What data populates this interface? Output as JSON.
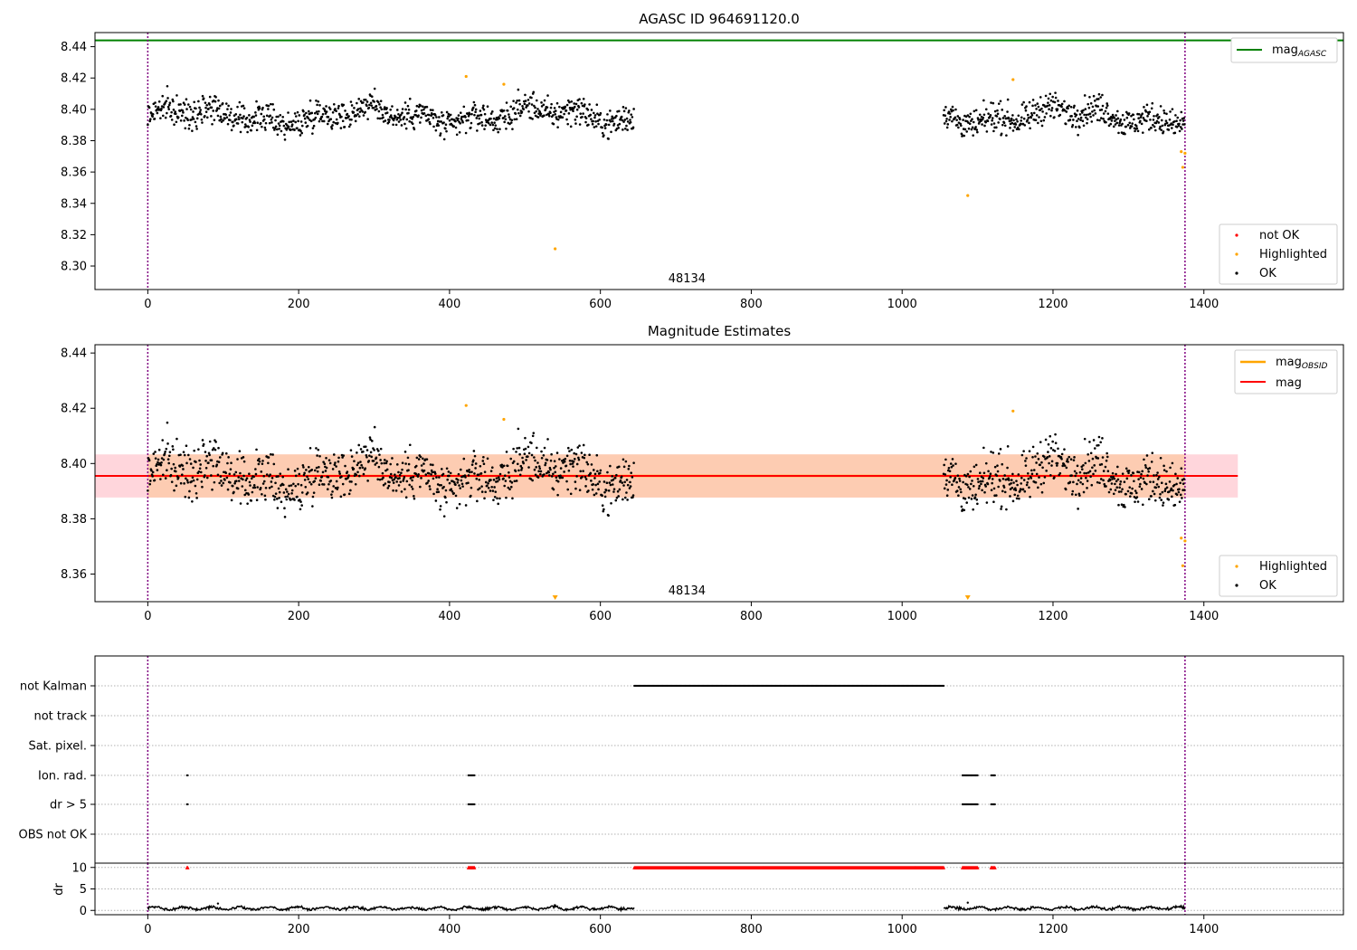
{
  "chart_data": [
    {
      "type": "scatter",
      "title": "AGASC ID 964691120.0",
      "xlim": [
        -70,
        1585
      ],
      "ylim": [
        8.285,
        8.449
      ],
      "xticks": [
        0,
        200,
        400,
        600,
        800,
        1000,
        1200,
        1400
      ],
      "yticks": [
        8.3,
        8.32,
        8.34,
        8.36,
        8.38,
        8.4,
        8.42,
        8.44
      ],
      "xtick_labels": [
        "0",
        "200",
        "400",
        "600",
        "800",
        "1000",
        "1200",
        "1400"
      ],
      "ytick_labels": [
        "8.30",
        "8.32",
        "8.34",
        "8.36",
        "8.38",
        "8.40",
        "8.42",
        "8.44"
      ],
      "obsid_label": {
        "text": "48134",
        "x": 690
      },
      "vlines": [
        0,
        1375
      ],
      "hline": {
        "name": "mag_AGASC",
        "value": 8.444,
        "color": "#008000"
      },
      "ok_segments": [
        [
          0,
          645
        ],
        [
          1055,
          1375
        ]
      ],
      "ok_mean": 8.396,
      "ok_spread": 0.0045,
      "ok_count": 1380,
      "highlighted_points": [
        [
          422,
          8.421
        ],
        [
          472,
          8.416
        ],
        [
          540,
          8.311
        ],
        [
          1087,
          8.345
        ],
        [
          1147,
          8.419
        ],
        [
          1370,
          8.373
        ],
        [
          1372,
          8.363
        ],
        [
          1375,
          8.372
        ]
      ],
      "legend": {
        "placement": "lower-right",
        "entries": [
          {
            "label": "not OK",
            "color": "#ff0000"
          },
          {
            "label": "Highlighted",
            "color": "#ffa500"
          },
          {
            "label": "OK",
            "color": "#000000"
          }
        ]
      },
      "line_legend": {
        "placement": "upper-right",
        "entries": [
          {
            "label": "mag",
            "sub": "AGASC",
            "color": "#008000"
          }
        ]
      }
    },
    {
      "type": "scatter",
      "title": "Magnitude Estimates",
      "xlim": [
        -70,
        1585
      ],
      "ylim": [
        8.35,
        8.443
      ],
      "xticks": [
        0,
        200,
        400,
        600,
        800,
        1000,
        1200,
        1400
      ],
      "yticks": [
        8.36,
        8.38,
        8.4,
        8.42,
        8.44
      ],
      "xtick_labels": [
        "0",
        "200",
        "400",
        "600",
        "800",
        "1000",
        "1200",
        "1400"
      ],
      "ytick_labels": [
        "8.36",
        "8.38",
        "8.40",
        "8.42",
        "8.44"
      ],
      "obsid_label": {
        "text": "48134",
        "x": 690
      },
      "vlines": [
        0,
        1375
      ],
      "mag_obsid": {
        "value": 8.3955,
        "band": [
          8.3877,
          8.4033
        ],
        "x_range": [
          0,
          1375
        ],
        "color": "#ffa500",
        "band_color": "#fdc9a8"
      },
      "mag": {
        "value": 8.3955,
        "band": [
          8.3877,
          8.4033
        ],
        "x_range": [
          -70,
          1445
        ],
        "color": "#ff0000",
        "band_color": "#ffd6dc"
      },
      "highlighted_points": [
        [
          422,
          8.421
        ],
        [
          472,
          8.416
        ],
        [
          1147,
          8.419
        ],
        [
          1370,
          8.373
        ],
        [
          1372,
          8.363
        ],
        [
          1375,
          8.372
        ]
      ],
      "offscale_markers": [
        540,
        1087
      ],
      "legend": {
        "placement": "lower-right",
        "entries": [
          {
            "label": "Highlighted",
            "color": "#ffa500"
          },
          {
            "label": "OK",
            "color": "#000000"
          }
        ]
      },
      "line_legend": {
        "placement": "upper-right",
        "entries": [
          {
            "label": "mag",
            "sub": "OBSID",
            "color": "#ffa500"
          },
          {
            "label": "mag",
            "sub": "",
            "color": "#ff0000"
          }
        ]
      }
    },
    {
      "type": "scatter",
      "title": "",
      "xlim": [
        -70,
        1585
      ],
      "categories": [
        "not Kalman",
        "not track",
        "Sat. pixel.",
        "Ion. rad.",
        "dr > 5",
        "OBS not OK"
      ],
      "flags": {
        "not Kalman": [
          [
            645,
            1055
          ]
        ],
        "not track": [],
        "Sat. pixel.": [],
        "Ion. rad.": [
          [
            52,
            53
          ],
          [
            425,
            433
          ],
          [
            1080,
            1100
          ],
          [
            1118,
            1123
          ]
        ],
        "dr > 5": [
          [
            52,
            53
          ],
          [
            425,
            433
          ],
          [
            1080,
            1100
          ],
          [
            1118,
            1123
          ]
        ],
        "OBS not OK": []
      },
      "vlines": [
        0,
        1375
      ]
    },
    {
      "type": "line",
      "title": "",
      "xlim": [
        -70,
        1585
      ],
      "ylim": [
        -1,
        11
      ],
      "ylabel": "dr",
      "xticks": [
        0,
        200,
        400,
        600,
        800,
        1000,
        1200,
        1400
      ],
      "xtick_labels": [
        "0",
        "200",
        "400",
        "600",
        "800",
        "1000",
        "1200",
        "1400"
      ],
      "yticks": [
        0,
        5,
        10
      ],
      "ytick_labels": [
        "0",
        "5",
        "10"
      ],
      "dr_segments": [
        [
          0,
          645
        ],
        [
          1055,
          1375
        ]
      ],
      "dr_typical": 0.5,
      "dr_spikes": [
        [
          93,
          1.6
        ],
        [
          540,
          1.2
        ],
        [
          1087,
          1.8
        ]
      ],
      "clipped": [
        [
          52,
          53
        ],
        [
          425,
          433
        ],
        [
          645,
          1055
        ],
        [
          1080,
          1100
        ],
        [
          1118,
          1123
        ]
      ],
      "clip_value": 10,
      "vlines": [
        0,
        1375
      ]
    }
  ]
}
